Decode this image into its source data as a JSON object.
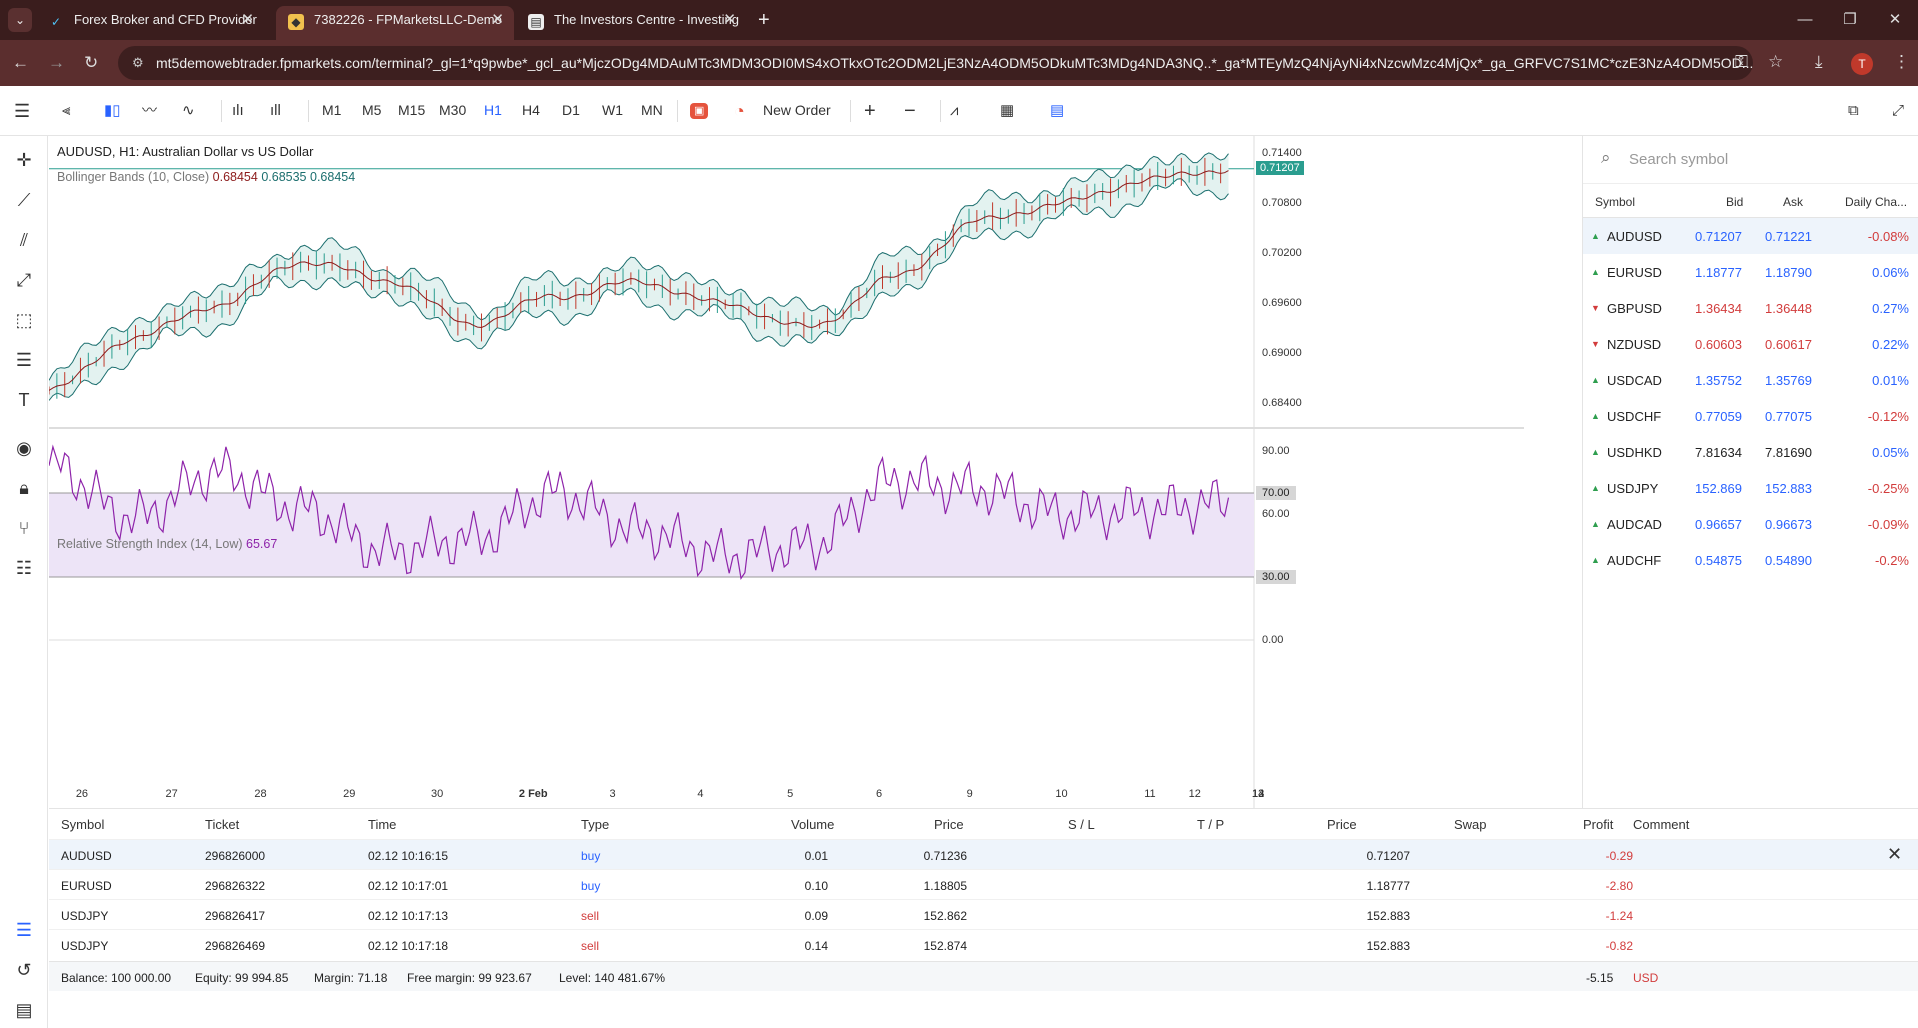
{
  "browser": {
    "tabs": [
      {
        "title": "Forex Broker and CFD Provider",
        "active": false
      },
      {
        "title": "7382226 - FPMarketsLLC-Demo",
        "active": true
      },
      {
        "title": "The Investors Centre - Investing",
        "active": false
      }
    ],
    "url": "mt5demowebtrader.fpmarkets.com/terminal?_gl=1*q9pwbe*_gcl_au*MjczODg4MDAuMTc3MDM3ODI0MS4xOTkxOTc2ODM2LjE3NzA4ODM5ODkuMTc3MDg4NDA3NQ..*_ga*MTEyMzQ4NjAyNi4xNzcwMzc4MjQx*_ga_GRFVC7S1MC*czE3NzA4ODM5OD...",
    "avatar": "T"
  },
  "toolbar": {
    "timeframes": [
      "M1",
      "M5",
      "M15",
      "M30",
      "H1",
      "H4",
      "D1",
      "W1",
      "MN"
    ],
    "active_timeframe": "H1",
    "new_order": "New Order"
  },
  "chart": {
    "title": "AUDUSD, H1: Australian Dollar vs US Dollar",
    "bb_label": "Bollinger Bands (10, Close)",
    "bb_v1": "0.68454",
    "bb_v2": "0.68535",
    "bb_v3": "0.68454",
    "rsi_label": "Relative Strength Index (14, Low)",
    "rsi_value": "65.67",
    "price_axis": [
      "0.71400",
      "0.70800",
      "0.70200",
      "0.69600",
      "0.69000",
      "0.68400"
    ],
    "current_price": "0.71207",
    "rsi_axis": [
      "90.00",
      "60.00",
      "0.00"
    ],
    "rsi_levels": [
      "70.00",
      "30.00"
    ],
    "dates": [
      "26",
      "27",
      "28",
      "29",
      "30",
      "2 Feb",
      "3",
      "4",
      "5",
      "6",
      "9",
      "10",
      "11",
      "12",
      "12",
      "13",
      "14"
    ]
  },
  "chart_data": {
    "type": "line",
    "symbol": "AUDUSD",
    "timeframe": "H1",
    "x": [
      "26",
      "27",
      "28",
      "29",
      "30",
      "2 Feb",
      "3",
      "4",
      "5",
      "6",
      "9",
      "10",
      "11",
      "12",
      "13",
      "14"
    ],
    "series": [
      {
        "name": "Bollinger Bands (10, Close)",
        "values": [
          0.6855,
          0.6918,
          0.6958,
          0.701,
          0.6988,
          0.6935,
          0.6968,
          0.6985,
          0.6958,
          0.693,
          0.699,
          0.7058,
          0.708,
          0.7108,
          0.7121,
          0.7121
        ]
      },
      {
        "name": "Relative Strength Index (14, Low)",
        "values": [
          83,
          58,
          80,
          62,
          42,
          48,
          70,
          52,
          40,
          45,
          76,
          72,
          60,
          62,
          65.67,
          65.67
        ]
      }
    ],
    "ylim_price": [
      0.681,
      0.716
    ],
    "ylim_rsi": [
      0,
      100
    ],
    "rsi_levels": [
      30,
      70
    ]
  },
  "watchlist": {
    "search_placeholder": "Search symbol",
    "headers": [
      "Symbol",
      "Bid",
      "Ask",
      "Daily Cha..."
    ],
    "rows": [
      {
        "symbol": "AUDUSD",
        "bid": "0.71207",
        "ask": "0.71221",
        "change": "-0.08%",
        "dir": "up",
        "bidc": "blue",
        "chc": "red"
      },
      {
        "symbol": "EURUSD",
        "bid": "1.18777",
        "ask": "1.18790",
        "change": "0.06%",
        "dir": "up",
        "bidc": "blue",
        "chc": "blue"
      },
      {
        "symbol": "GBPUSD",
        "bid": "1.36434",
        "ask": "1.36448",
        "change": "0.27%",
        "dir": "dn",
        "bidc": "red",
        "chc": "blue"
      },
      {
        "symbol": "NZDUSD",
        "bid": "0.60603",
        "ask": "0.60617",
        "change": "0.22%",
        "dir": "dn",
        "bidc": "red",
        "chc": "blue"
      },
      {
        "symbol": "USDCAD",
        "bid": "1.35752",
        "ask": "1.35769",
        "change": "0.01%",
        "dir": "up",
        "bidc": "blue",
        "chc": "blue"
      },
      {
        "symbol": "USDCHF",
        "bid": "0.77059",
        "ask": "0.77075",
        "change": "-0.12%",
        "dir": "up",
        "bidc": "blue",
        "chc": "red"
      },
      {
        "symbol": "USDHKD",
        "bid": "7.81634",
        "ask": "7.81690",
        "change": "0.05%",
        "dir": "up",
        "bidc": "blk",
        "chc": "blue"
      },
      {
        "symbol": "USDJPY",
        "bid": "152.869",
        "ask": "152.883",
        "change": "-0.25%",
        "dir": "up",
        "bidc": "blue",
        "chc": "red"
      },
      {
        "symbol": "AUDCAD",
        "bid": "0.96657",
        "ask": "0.96673",
        "change": "-0.09%",
        "dir": "up",
        "bidc": "blue",
        "chc": "red"
      },
      {
        "symbol": "AUDCHF",
        "bid": "0.54875",
        "ask": "0.54890",
        "change": "-0.2%",
        "dir": "up",
        "bidc": "blue",
        "chc": "red"
      }
    ]
  },
  "positions": {
    "headers": [
      "Symbol",
      "Ticket",
      "Time",
      "Type",
      "Volume",
      "Price",
      "S / L",
      "T / P",
      "Price",
      "Swap",
      "Profit",
      "Comment"
    ],
    "rows": [
      {
        "symbol": "AUDUSD",
        "ticket": "296826000",
        "time": "02.12 10:16:15",
        "type": "buy",
        "volume": "0.01",
        "price": "0.71236",
        "current": "0.71207",
        "profit": "-0.29"
      },
      {
        "symbol": "EURUSD",
        "ticket": "296826322",
        "time": "02.12 10:17:01",
        "type": "buy",
        "volume": "0.10",
        "price": "1.18805",
        "current": "1.18777",
        "profit": "-2.80"
      },
      {
        "symbol": "USDJPY",
        "ticket": "296826417",
        "time": "02.12 10:17:13",
        "type": "sell",
        "volume": "0.09",
        "price": "152.862",
        "current": "152.883",
        "profit": "-1.24"
      },
      {
        "symbol": "USDJPY",
        "ticket": "296826469",
        "time": "02.12 10:17:18",
        "type": "sell",
        "volume": "0.14",
        "price": "152.874",
        "current": "152.883",
        "profit": "-0.82"
      }
    ],
    "summary": {
      "balance": "Balance: 100 000.00",
      "equity": "Equity: 99 994.85",
      "margin": "Margin: 71.18",
      "free_margin": "Free margin: 99 923.67",
      "level": "Level: 140 481.67%",
      "total": "-5.15",
      "currency": "USD"
    }
  }
}
